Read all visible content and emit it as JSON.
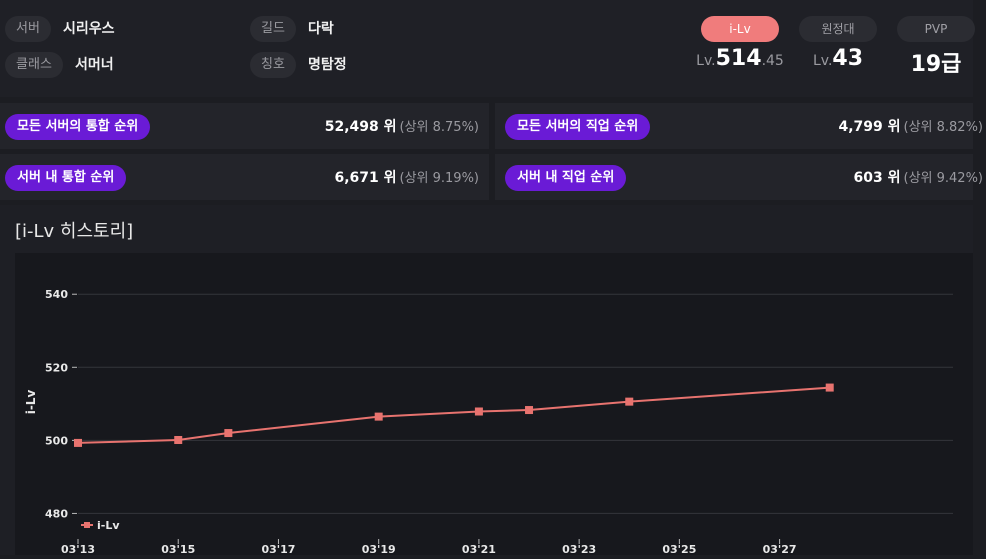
{
  "profile": {
    "server_label": "서버",
    "server": "시리우스",
    "guild_label": "길드",
    "guild": "다락",
    "class_label": "클래스",
    "class": "서머너",
    "title_label": "칭호",
    "title": "명탐정"
  },
  "stats": [
    {
      "label": "i-Lv",
      "prefix": "Lv.",
      "value": "514",
      "decimal": ".45",
      "active": true
    },
    {
      "label": "원정대",
      "prefix": "Lv.",
      "value": "43",
      "decimal": "",
      "active": false
    },
    {
      "label": "PVP",
      "prefix": "",
      "value": "19급",
      "decimal": "",
      "active": false
    }
  ],
  "rankings": [
    {
      "label": "모든 서버의 통합 순위",
      "rank": "52,498 위",
      "pct": "(상위 8.75%)"
    },
    {
      "label": "모든 서버의 직업 순위",
      "rank": "4,799 위",
      "pct": "(상위 8.82%)"
    },
    {
      "label": "서버 내 통합 순위",
      "rank": "6,671 위",
      "pct": "(상위 9.19%)"
    },
    {
      "label": "서버 내 직업 순위",
      "rank": "603 위",
      "pct": "(상위 9.42%)"
    }
  ],
  "history": {
    "title": "[i-Lv 히스토리]"
  },
  "colors": {
    "accent": "#f07c7c",
    "rank_badge": "#6a1bd6",
    "line": "#e8736f"
  },
  "chart_data": {
    "type": "line",
    "title": "",
    "ylabel": "i-Lv",
    "xlabel": "",
    "ylim": [
      473,
      548
    ],
    "yticks": [
      480,
      500,
      520,
      540
    ],
    "xlim": [
      0,
      17.5
    ],
    "xticks": [
      0,
      2,
      4,
      6,
      8,
      10,
      12,
      14
    ],
    "xtick_labels": [
      "03'13",
      "03'15",
      "03'17",
      "03'19",
      "03'21",
      "03'23",
      "03'25",
      "03'27"
    ],
    "legend": "bottom-left",
    "series": [
      {
        "name": "i-Lv",
        "x": [
          0,
          2,
          3,
          6,
          8,
          9,
          11,
          15
        ],
        "values": [
          499.3,
          500.1,
          502.0,
          506.5,
          507.9,
          508.3,
          510.6,
          514.45
        ]
      }
    ]
  }
}
